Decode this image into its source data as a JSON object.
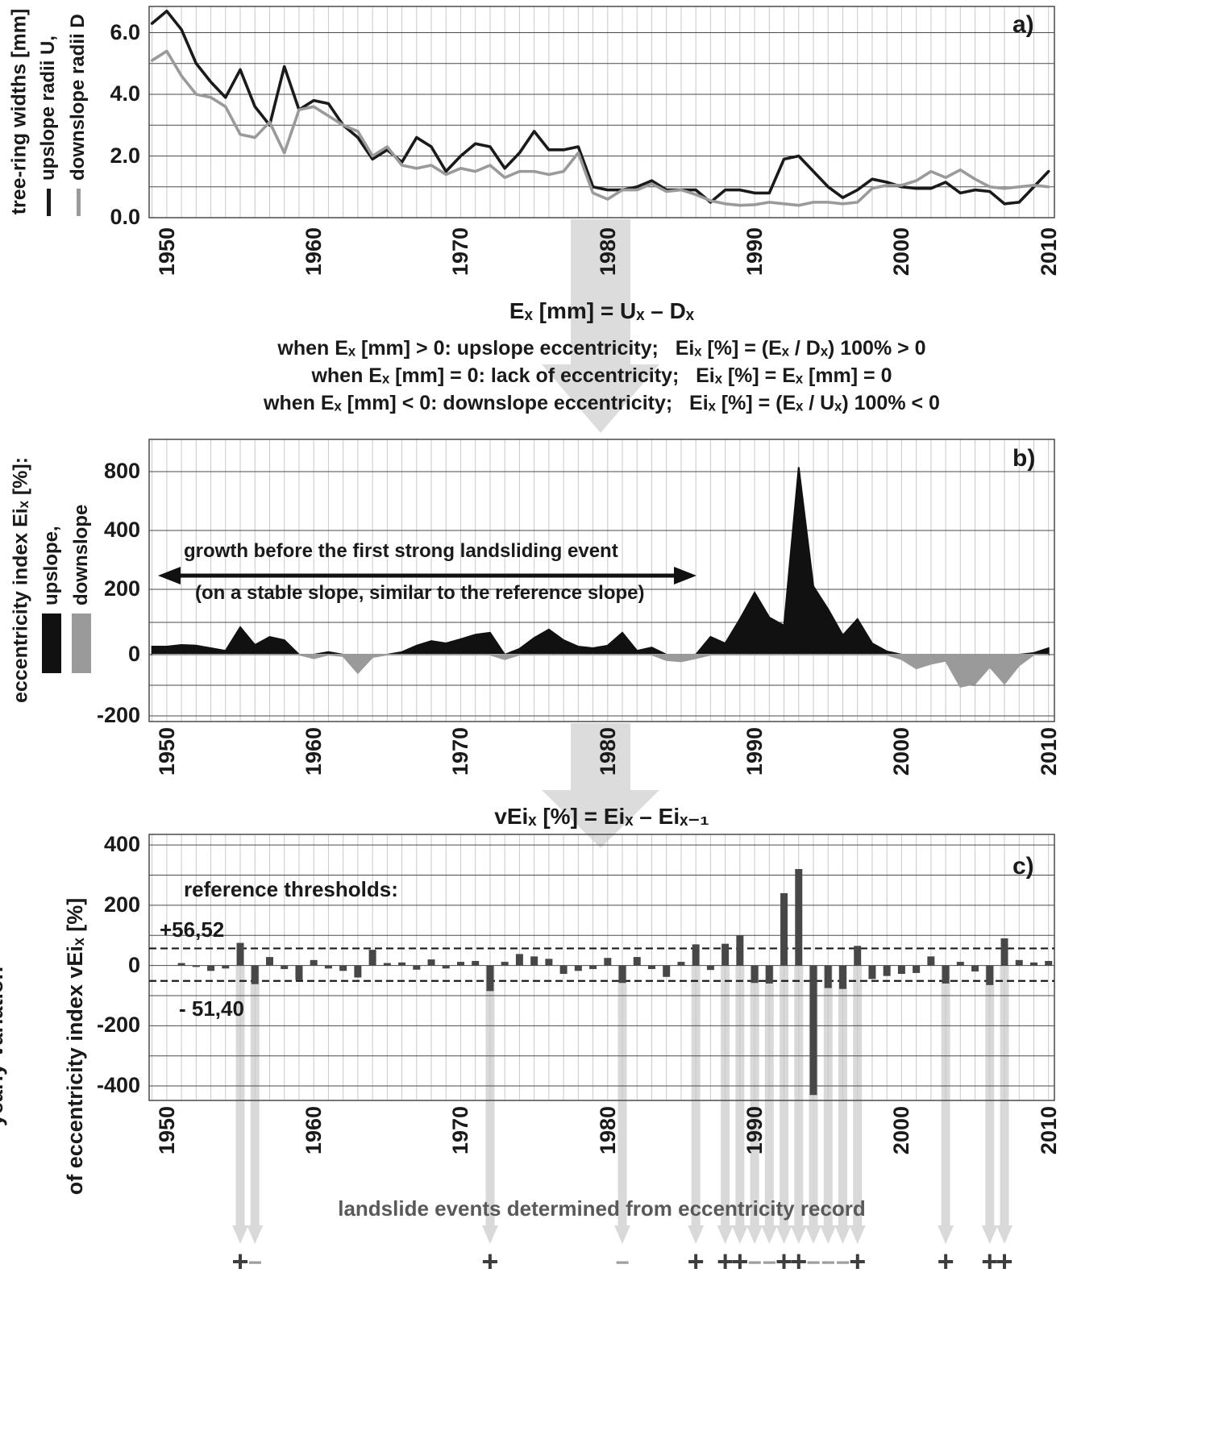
{
  "colors": {
    "upslope": "#1a1a1a",
    "downslope": "#9a9a9a",
    "bars": "#474747",
    "event_line": "#d9d9d9",
    "flow_arrow": "#dcdcdc",
    "event_plus": "#3d3d3d",
    "event_minus": "#9f9f9f",
    "grid_minor": "#c9c9c9",
    "grid_major": "#4a4a4a"
  },
  "figure": {
    "panels": {
      "a": {
        "letter": "a)",
        "y_title": "tree-ring widths [mm]",
        "legend": [
          {
            "label": "upslope radii U,"
          },
          {
            "label": "downslope radii D"
          }
        ],
        "y_tick_labels": [
          "6.0",
          "4.0",
          "2.0",
          "0.0"
        ],
        "x_tick_labels": [
          "1950",
          "1960",
          "1970",
          "1980",
          "1990",
          "2000",
          "2010"
        ]
      },
      "b": {
        "letter": "b)",
        "y_title": "eccentricity index Eiₓ [%]:",
        "legend": [
          {
            "label": "upslope,"
          },
          {
            "label": "downslope"
          }
        ],
        "y_tick_labels": [
          "800",
          "400",
          "200",
          "0",
          "-200"
        ],
        "x_tick_labels": [
          "1950",
          "1960",
          "1970",
          "1980",
          "1990",
          "2000",
          "2010"
        ],
        "annotation_line1": "growth before the first strong landsliding event",
        "annotation_line2": "(on a stable slope, similar to the reference slope)"
      },
      "c": {
        "letter": "c)",
        "y_title_line1": "yearly variation",
        "y_title_line2": "of eccentricity index vEiₓ [%]",
        "y_tick_labels": [
          "400",
          "200",
          "0",
          "-200",
          "-400"
        ],
        "x_tick_labels": [
          "1950",
          "1960",
          "1970",
          "1980",
          "1990",
          "2000",
          "2010"
        ],
        "thresholds_label": "reference thresholds:",
        "threshold_upper_label": "+56,52",
        "threshold_lower_label": "- 51,40"
      }
    },
    "formulas": {
      "e_def": "Eₓ [mm] = Uₓ – Dₓ",
      "when_pos": "when Eₓ [mm] > 0: upslope eccentricity;   Eiₓ [%] = (Eₓ / Dₓ) 100% > 0",
      "when_zero": "when Eₓ [mm] = 0: lack of eccentricity;   Eiₓ [%] = Eₓ [mm] = 0",
      "when_neg": "when Eₓ [mm] < 0: downslope eccentricity;   Eiₓ [%] = (Eₓ / Uₓ) 100% < 0",
      "vei_def": "vEiₓ [%] = Eiₓ – Eiₓ₋₁"
    },
    "events_caption": "landslide events determined from eccentricity record"
  },
  "events": [
    {
      "year": 1955,
      "sign": "+"
    },
    {
      "year": 1956,
      "sign": "-"
    },
    {
      "year": 1972,
      "sign": "+"
    },
    {
      "year": 1981,
      "sign": "-"
    },
    {
      "year": 1986,
      "sign": "+"
    },
    {
      "year": 1988,
      "sign": "+"
    },
    {
      "year": 1989,
      "sign": "+"
    },
    {
      "year": 1990,
      "sign": "-"
    },
    {
      "year": 1991,
      "sign": "-"
    },
    {
      "year": 1992,
      "sign": "+"
    },
    {
      "year": 1993,
      "sign": "+"
    },
    {
      "year": 1994,
      "sign": "-"
    },
    {
      "year": 1995,
      "sign": "-"
    },
    {
      "year": 1996,
      "sign": "-"
    },
    {
      "year": 1997,
      "sign": "+"
    },
    {
      "year": 2003,
      "sign": "+"
    },
    {
      "year": 2006,
      "sign": "+"
    },
    {
      "year": 2007,
      "sign": "+"
    }
  ],
  "chart_data": [
    {
      "type": "line",
      "title": "a) tree-ring widths",
      "ylabel": "tree-ring widths [mm]",
      "ylim": [
        0,
        6.85
      ],
      "x_ticks": [
        1950,
        1960,
        1970,
        1980,
        1990,
        2000,
        2010
      ],
      "x": [
        1949,
        1950,
        1951,
        1952,
        1953,
        1954,
        1955,
        1956,
        1957,
        1958,
        1959,
        1960,
        1961,
        1962,
        1963,
        1964,
        1965,
        1966,
        1967,
        1968,
        1969,
        1970,
        1971,
        1972,
        1973,
        1974,
        1975,
        1976,
        1977,
        1978,
        1979,
        1980,
        1981,
        1982,
        1983,
        1984,
        1985,
        1986,
        1987,
        1988,
        1989,
        1990,
        1991,
        1992,
        1993,
        1994,
        1995,
        1996,
        1997,
        1998,
        1999,
        2000,
        2001,
        2002,
        2003,
        2004,
        2005,
        2006,
        2007,
        2008,
        2009,
        2010
      ],
      "series": [
        {
          "name": "upslope radii U",
          "color": "#1a1a1a",
          "values": [
            6.3,
            6.7,
            6.1,
            5.0,
            4.4,
            3.9,
            4.8,
            3.6,
            3.0,
            4.9,
            3.5,
            3.8,
            3.7,
            3.0,
            2.6,
            1.9,
            2.2,
            1.8,
            2.6,
            2.3,
            1.5,
            2.0,
            2.4,
            2.3,
            1.6,
            2.1,
            2.8,
            2.2,
            2.2,
            2.3,
            1.0,
            0.9,
            0.9,
            1.0,
            1.2,
            0.9,
            0.9,
            0.9,
            0.5,
            0.9,
            0.9,
            0.8,
            0.8,
            1.9,
            2.0,
            1.5,
            1.0,
            0.65,
            0.9,
            1.25,
            1.15,
            1.0,
            0.95,
            0.95,
            1.15,
            0.8,
            0.9,
            0.85,
            0.45,
            0.5,
            1.0,
            1.5
          ]
        },
        {
          "name": "downslope radii D",
          "color": "#9a9a9a",
          "values": [
            5.1,
            5.4,
            4.6,
            4.0,
            3.9,
            3.6,
            2.7,
            2.6,
            3.1,
            2.1,
            3.5,
            3.6,
            3.3,
            3.0,
            2.8,
            2.0,
            2.3,
            1.7,
            1.6,
            1.7,
            1.4,
            1.6,
            1.5,
            1.7,
            1.3,
            1.5,
            1.5,
            1.4,
            1.5,
            2.1,
            0.8,
            0.6,
            0.9,
            0.9,
            1.1,
            0.85,
            0.9,
            0.75,
            0.55,
            0.45,
            0.4,
            0.42,
            0.5,
            0.45,
            0.4,
            0.5,
            0.5,
            0.45,
            0.5,
            0.95,
            1.05,
            1.05,
            1.2,
            1.5,
            1.3,
            1.55,
            1.25,
            1.0,
            0.95,
            1.0,
            1.05,
            1.0
          ]
        }
      ]
    },
    {
      "type": "area",
      "title": "b) eccentricity index",
      "ylabel": "eccentricity index Eiₓ [%]",
      "yticks": [
        -200,
        -100,
        0,
        100,
        200,
        400,
        800
      ],
      "series": [
        {
          "name": "eccentricity index Ei",
          "positive_name": "upslope",
          "negative_name": "downslope",
          "positive_color": "#111111",
          "negative_color": "#9a9a9a",
          "values": [
            25,
            25,
            30,
            28,
            20,
            12,
            85,
            30,
            55,
            45,
            0,
            -12,
            8,
            -5,
            -60,
            -8,
            0,
            8,
            28,
            42,
            35,
            48,
            62,
            68,
            -15,
            18,
            52,
            78,
            45,
            25,
            20,
            28,
            68,
            12,
            22,
            -18,
            -22,
            -12,
            55,
            35,
            110,
            190,
            115,
            90,
            830,
            210,
            140,
            60,
            110,
            35,
            10,
            -15,
            -45,
            -30,
            -20,
            -105,
            -95,
            -40,
            -95,
            -35,
            5,
            20
          ]
        }
      ]
    },
    {
      "type": "bar",
      "title": "c) yearly variation of eccentricity index",
      "ylabel": "yearly variation of eccentricity index vEiₓ [%]",
      "ylim": [
        -448,
        435
      ],
      "thresholds": {
        "upper": 56.52,
        "lower": -51.4
      },
      "values": [
        0,
        0,
        8,
        -5,
        -18,
        -10,
        75,
        -62,
        28,
        -12,
        -48,
        18,
        -10,
        -18,
        -40,
        52,
        8,
        10,
        -14,
        20,
        -10,
        12,
        15,
        -85,
        12,
        38,
        30,
        22,
        -28,
        -18,
        -12,
        25,
        -58,
        28,
        -12,
        -38,
        12,
        70,
        -15,
        72,
        100,
        -58,
        -60,
        240,
        320,
        -430,
        -75,
        -78,
        65,
        -45,
        -35,
        -28,
        -25,
        30,
        -60,
        12,
        -20,
        -65,
        90,
        18,
        10,
        15
      ]
    }
  ]
}
